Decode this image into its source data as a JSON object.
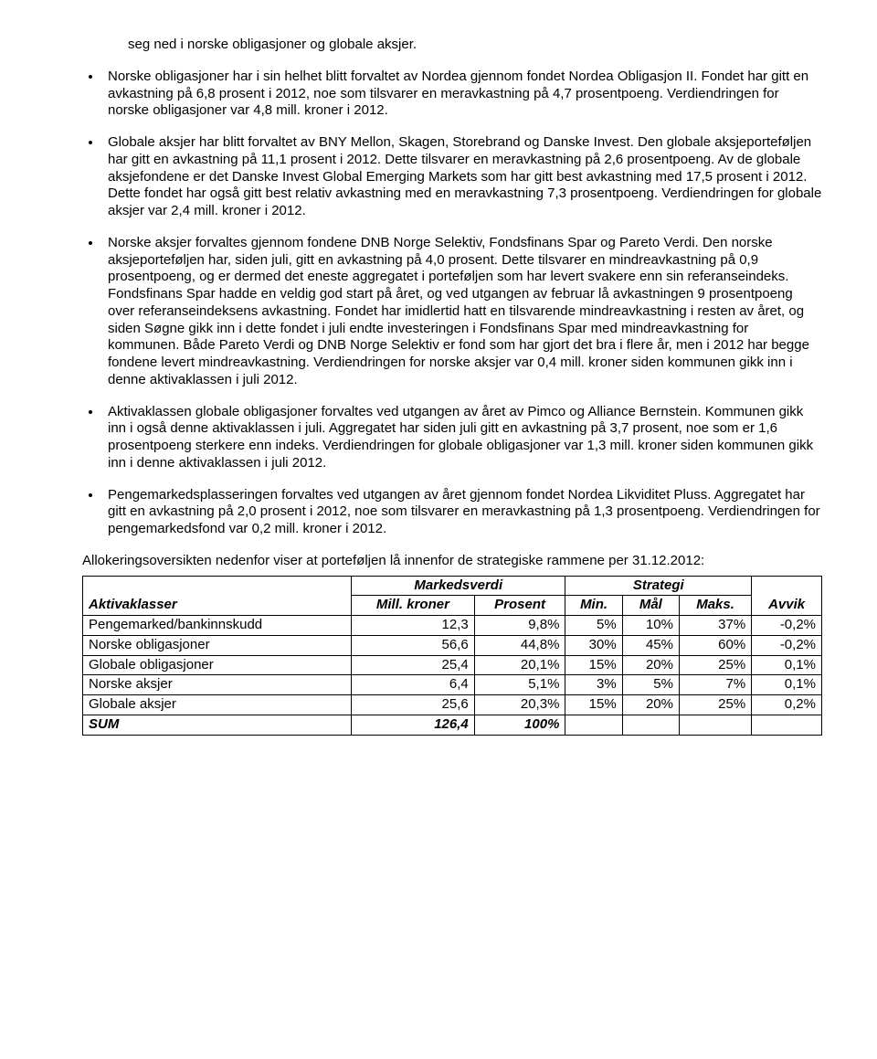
{
  "cont_para": "seg ned i norske obligasjoner og globale aksjer.",
  "bullets_a": [
    "Norske obligasjoner har i sin helhet blitt forvaltet av Nordea gjennom fondet Nordea Obligasjon II. Fondet har gitt en avkastning på 6,8 prosent i 2012, noe som tilsvarer en meravkastning på 4,7 prosentpoeng. Verdiendringen for norske obligasjoner var 4,8 mill. kroner i 2012.",
    "Globale aksjer har blitt forvaltet av BNY Mellon, Skagen, Storebrand og Danske Invest. Den globale aksjeporteføljen har gitt en avkastning på 11,1 prosent i 2012. Dette tilsvarer en meravkastning på 2,6 prosentpoeng. Av de globale aksjefondene er det Danske Invest Global Emerging Markets som har gitt best avkastning med 17,5 prosent i 2012. Dette fondet har også gitt best relativ avkastning med en meravkastning 7,3 prosentpoeng. Verdiendringen for globale aksjer var 2,4 mill. kroner i 2012.",
    "Norske aksjer forvaltes gjennom fondene DNB Norge Selektiv, Fondsfinans Spar og Pareto Verdi. Den norske aksjeporteføljen har, siden juli, gitt en avkastning på 4,0 prosent. Dette tilsvarer en mindreavkastning på 0,9 prosentpoeng, og er dermed det eneste aggregatet i porteføljen som har levert svakere enn sin referanseindeks. Fondsfinans Spar hadde en veldig god start på året, og ved utgangen av februar lå avkastningen 9 prosentpoeng over referanseindeksens avkastning. Fondet har imidlertid hatt en tilsvarende mindreavkastning i resten av året, og siden Søgne gikk inn i dette fondet i juli endte investeringen i Fondsfinans Spar med mindreavkastning for kommunen. Både Pareto Verdi og DNB Norge Selektiv er fond som har gjort det bra i flere år, men i 2012 har begge fondene levert mindreavkastning. Verdiendringen for norske aksjer var 0,4 mill. kroner siden kommunen gikk inn i denne aktivaklassen i juli 2012.",
    "Aktivaklassen globale obligasjoner forvaltes ved utgangen av året av Pimco og Alliance Bernstein. Kommunen gikk inn i også denne aktivaklassen i juli. Aggregatet har siden juli gitt en avkastning på 3,7 prosent, noe som er 1,6 prosentpoeng sterkere enn indeks. Verdiendringen for globale obligasjoner var 1,3 mill. kroner siden kommunen gikk inn i denne aktivaklassen i juli 2012.",
    "Pengemarkedsplasseringen forvaltes ved utgangen av året gjennom fondet Nordea Likviditet Pluss. Aggregatet har gitt en avkastning på 2,0 prosent i 2012, noe som tilsvarer en meravkastning på 1,3 prosentpoeng. Verdiendringen for pengemarkedsfond var 0,2 mill. kroner i 2012."
  ],
  "table_intro": "Allokeringsoversikten nedenfor viser at porteføljen lå innenfor de strategiske rammene per 31.12.2012:",
  "table": {
    "group_headers": {
      "markedsverdi": "Markedsverdi",
      "strategi": "Strategi"
    },
    "columns": {
      "aktiva": "Aktivaklasser",
      "mill": "Mill. kroner",
      "prosent": "Prosent",
      "min": "Min.",
      "maal": "Mål",
      "maks": "Maks.",
      "avvik": "Avvik"
    },
    "rows": [
      {
        "label": "Pengemarked/bankinnskudd",
        "mill": "12,3",
        "prosent": "9,8%",
        "min": "5%",
        "maal": "10%",
        "maks": "37%",
        "avvik": "-0,2%"
      },
      {
        "label": "Norske obligasjoner",
        "mill": "56,6",
        "prosent": "44,8%",
        "min": "30%",
        "maal": "45%",
        "maks": "60%",
        "avvik": "-0,2%"
      },
      {
        "label": "Globale obligasjoner",
        "mill": "25,4",
        "prosent": "20,1%",
        "min": "15%",
        "maal": "20%",
        "maks": "25%",
        "avvik": "0,1%"
      },
      {
        "label": "Norske aksjer",
        "mill": "6,4",
        "prosent": "5,1%",
        "min": "3%",
        "maal": "5%",
        "maks": "7%",
        "avvik": "0,1%"
      },
      {
        "label": "Globale aksjer",
        "mill": "25,6",
        "prosent": "20,3%",
        "min": "15%",
        "maal": "20%",
        "maks": "25%",
        "avvik": "0,2%"
      }
    ],
    "sum": {
      "label": "SUM",
      "mill": "126,4",
      "prosent": "100%"
    }
  }
}
